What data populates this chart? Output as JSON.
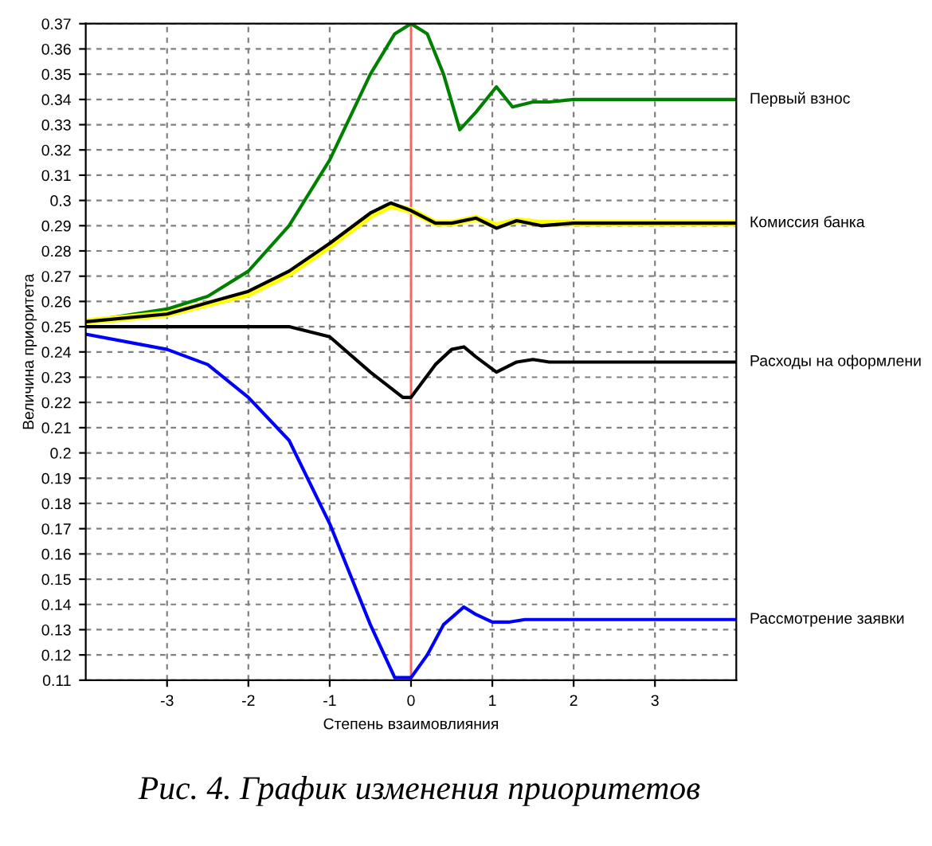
{
  "chart_data": {
    "type": "line",
    "xlabel": "Степень взаимовлияния",
    "ylabel": "Величина приоритета",
    "annotations": [
      "Рис. 4. График изменения приоритетов"
    ],
    "xlim": [
      -4,
      4
    ],
    "ylim": [
      0.11,
      0.37
    ],
    "xticks": [
      -3,
      -2,
      -1,
      0,
      1,
      2,
      3
    ],
    "yticks": [
      0.11,
      0.12,
      0.13,
      0.14,
      0.15,
      0.16,
      0.17,
      0.18,
      0.19,
      0.2,
      0.21,
      0.22,
      0.23,
      0.24,
      0.25,
      0.26,
      0.27,
      0.28,
      0.29,
      0.3,
      0.31,
      0.32,
      0.33,
      0.34,
      0.35,
      0.36,
      0.37
    ],
    "grid": true,
    "legend": false,
    "marker": "none",
    "line_style": "solid",
    "ref_lines": [
      {
        "axis": "x",
        "value": 0,
        "color": "#ff6060"
      }
    ],
    "series": [
      {
        "name": "Первый взнос",
        "color": "#008000",
        "x": [
          -4,
          -3,
          -2.5,
          -2,
          -1.5,
          -1,
          -0.5,
          -0.2,
          0,
          0.2,
          0.4,
          0.6,
          0.8,
          1.05,
          1.25,
          1.5,
          1.7,
          2,
          4
        ],
        "values": [
          0.252,
          0.257,
          0.262,
          0.272,
          0.29,
          0.316,
          0.35,
          0.366,
          0.37,
          0.366,
          0.35,
          0.328,
          0.335,
          0.345,
          0.337,
          0.339,
          0.339,
          0.34,
          0.34
        ]
      },
      {
        "color": "#ffff00",
        "x": [
          -4,
          -3,
          -2,
          -1.5,
          -1,
          -0.5,
          -0.25,
          0,
          0.3,
          0.5,
          0.8,
          1.05,
          1.3,
          1.6,
          2,
          4
        ],
        "values": [
          0.252,
          0.255,
          0.263,
          0.271,
          0.282,
          0.294,
          0.298,
          0.296,
          0.291,
          0.291,
          0.293,
          0.29,
          0.292,
          0.291,
          0.291,
          0.291
        ]
      },
      {
        "name": "Комиссия банка",
        "color": "#000000",
        "x": [
          -4,
          -3,
          -2,
          -1.5,
          -1,
          -0.5,
          -0.25,
          0,
          0.3,
          0.5,
          0.8,
          1.05,
          1.3,
          1.6,
          2,
          4
        ],
        "values": [
          0.252,
          0.255,
          0.264,
          0.272,
          0.283,
          0.295,
          0.299,
          0.296,
          0.291,
          0.291,
          0.293,
          0.289,
          0.292,
          0.29,
          0.291,
          0.291
        ]
      },
      {
        "name": "Расходы на оформлени",
        "color": "#000000",
        "x": [
          -4,
          -1.5,
          -1,
          -0.5,
          -0.1,
          0,
          0.3,
          0.5,
          0.65,
          0.8,
          1.05,
          1.3,
          1.5,
          1.7,
          4
        ],
        "values": [
          0.25,
          0.25,
          0.246,
          0.232,
          0.222,
          0.222,
          0.235,
          0.241,
          0.242,
          0.238,
          0.232,
          0.236,
          0.237,
          0.236,
          0.236
        ]
      },
      {
        "name": "Рассмотрение заявки",
        "color": "#0000ff",
        "x": [
          -4,
          -3,
          -2.5,
          -2,
          -1.5,
          -1,
          -0.5,
          -0.2,
          0,
          0.2,
          0.4,
          0.65,
          0.8,
          1,
          1.2,
          1.4,
          2,
          4
        ],
        "values": [
          0.247,
          0.241,
          0.235,
          0.222,
          0.205,
          0.172,
          0.132,
          0.111,
          0.111,
          0.12,
          0.132,
          0.139,
          0.136,
          0.133,
          0.133,
          0.134,
          0.134,
          0.134
        ]
      }
    ]
  }
}
